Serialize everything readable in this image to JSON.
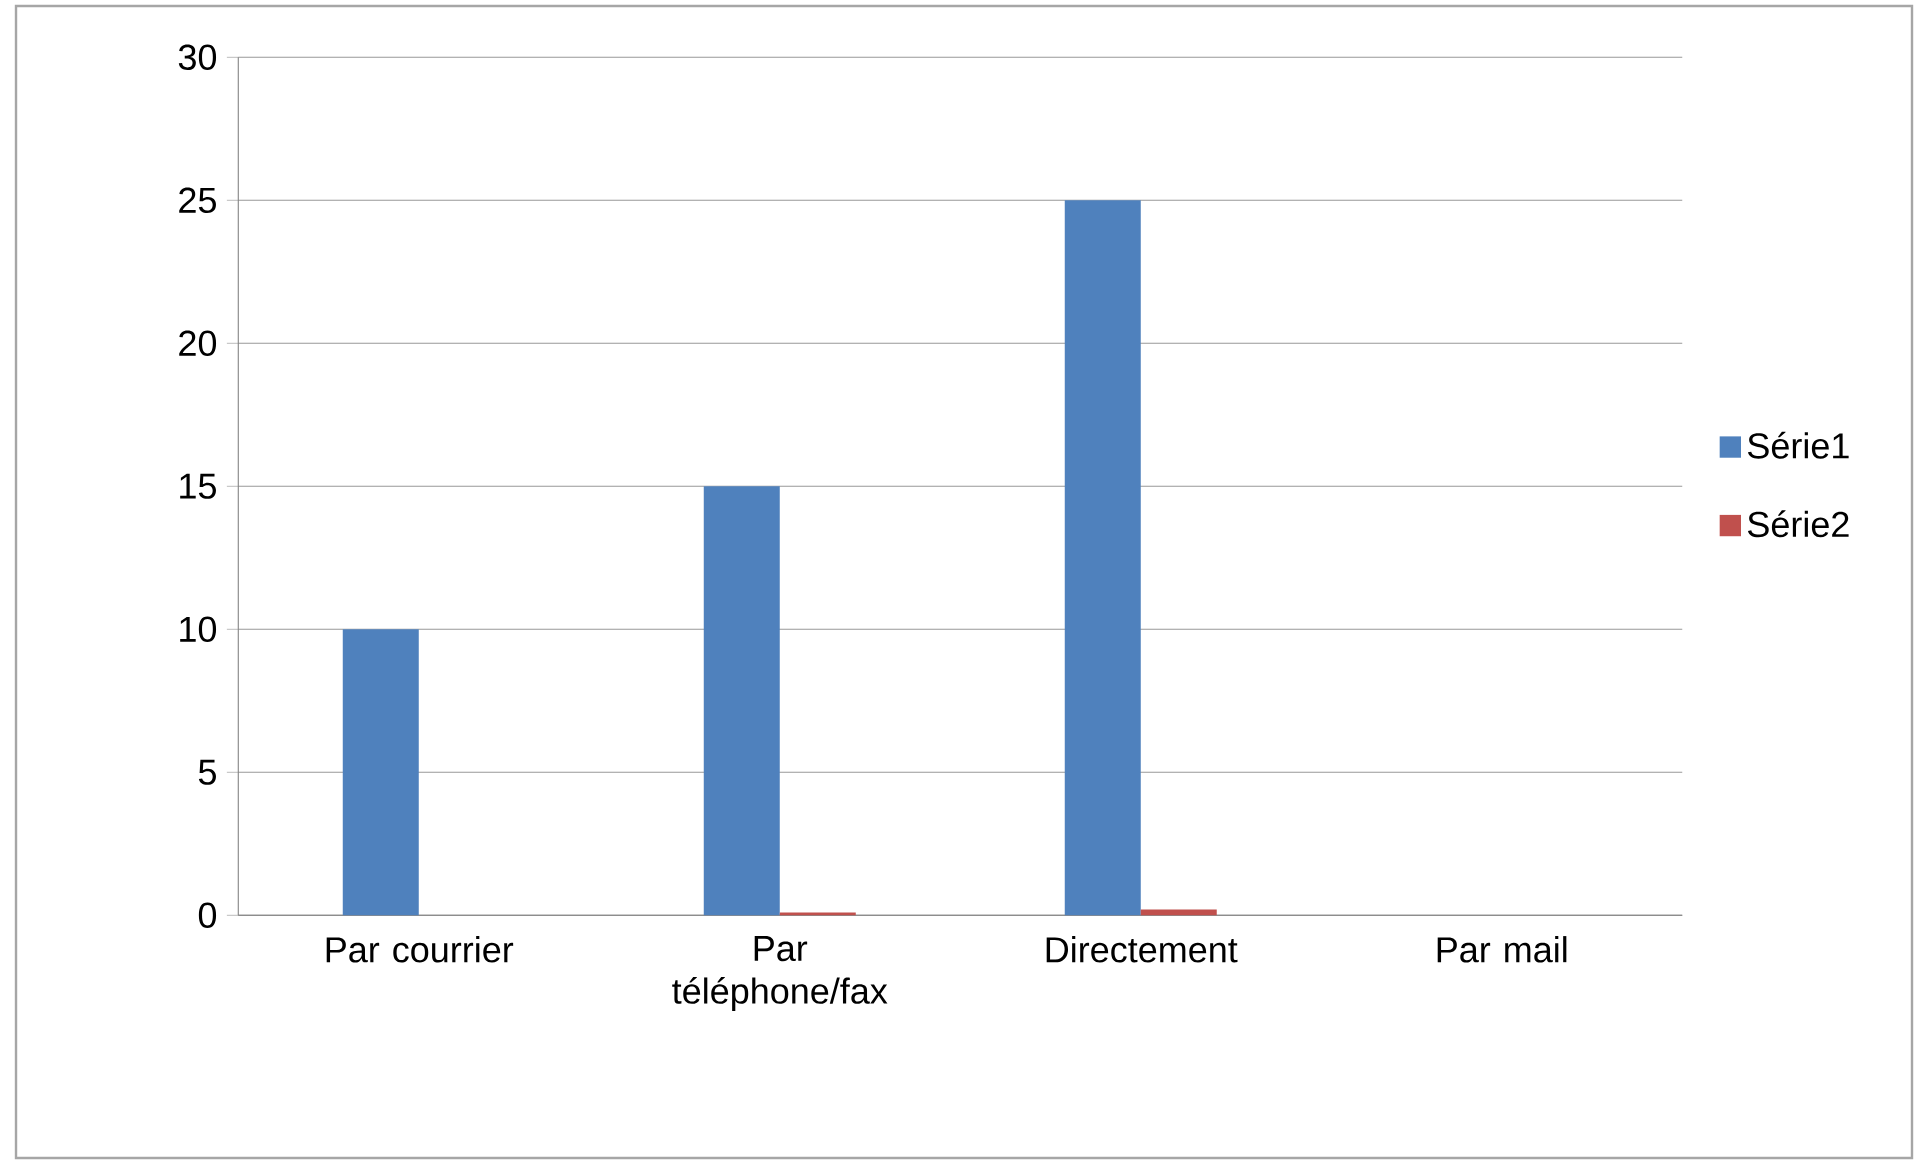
{
  "chart_data": {
    "type": "bar",
    "categories": [
      "Par courrier",
      "Par téléphone/fax",
      "Directement",
      "Par mail"
    ],
    "series": [
      {
        "name": "Série1",
        "color": "#4f81bd",
        "values": [
          10,
          15,
          25,
          0
        ]
      },
      {
        "name": "Série2",
        "color": "#c0504d",
        "values": [
          0,
          0.1,
          0.2,
          0
        ]
      }
    ],
    "ylim": [
      0,
      30
    ],
    "yticks": [
      0,
      5,
      10,
      15,
      20,
      25,
      30
    ],
    "grid": "y",
    "legend": "right"
  }
}
